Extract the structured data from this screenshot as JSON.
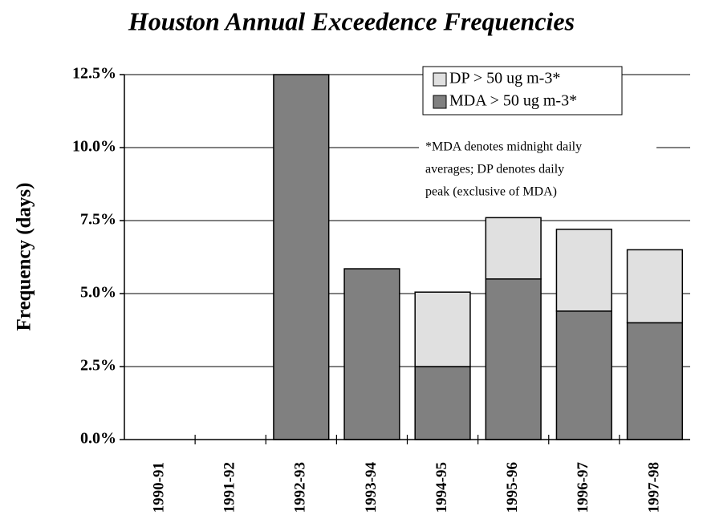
{
  "chart_data": {
    "type": "stacked-bar",
    "title": "Houston Annual Exceedence Frequencies",
    "y_axis_label": "Frequency (days)",
    "categories": [
      "1990-91",
      "1991-92",
      "1992-93",
      "1993-94",
      "1994-95",
      "1995-96",
      "1996-97",
      "1997-98"
    ],
    "series": [
      {
        "name": "MDA > 50 ug m-3*",
        "color": "#808080",
        "values": [
          null,
          null,
          12.5,
          5.85,
          2.5,
          5.5,
          4.4,
          4.0
        ]
      },
      {
        "name": "DP > 50 ug m-3*",
        "color": "#e0e0e0",
        "values": [
          null,
          null,
          0,
          0,
          2.55,
          2.1,
          2.8,
          2.5
        ]
      }
    ],
    "ylim": [
      0,
      12.5
    ],
    "yticks": [
      {
        "value": 0,
        "label": "0.0%"
      },
      {
        "value": 2.5,
        "label": "2.5%"
      },
      {
        "value": 5,
        "label": "5.0%"
      },
      {
        "value": 7.5,
        "label": "7.5%"
      },
      {
        "value": 10,
        "label": "10.0%"
      },
      {
        "value": 12.5,
        "label": "12.5%"
      }
    ],
    "grid": true,
    "legend": "top-right",
    "annotation": [
      "*MDA denotes midnight daily",
      "averages; DP denotes daily",
      "peak (exclusive of MDA)"
    ]
  }
}
